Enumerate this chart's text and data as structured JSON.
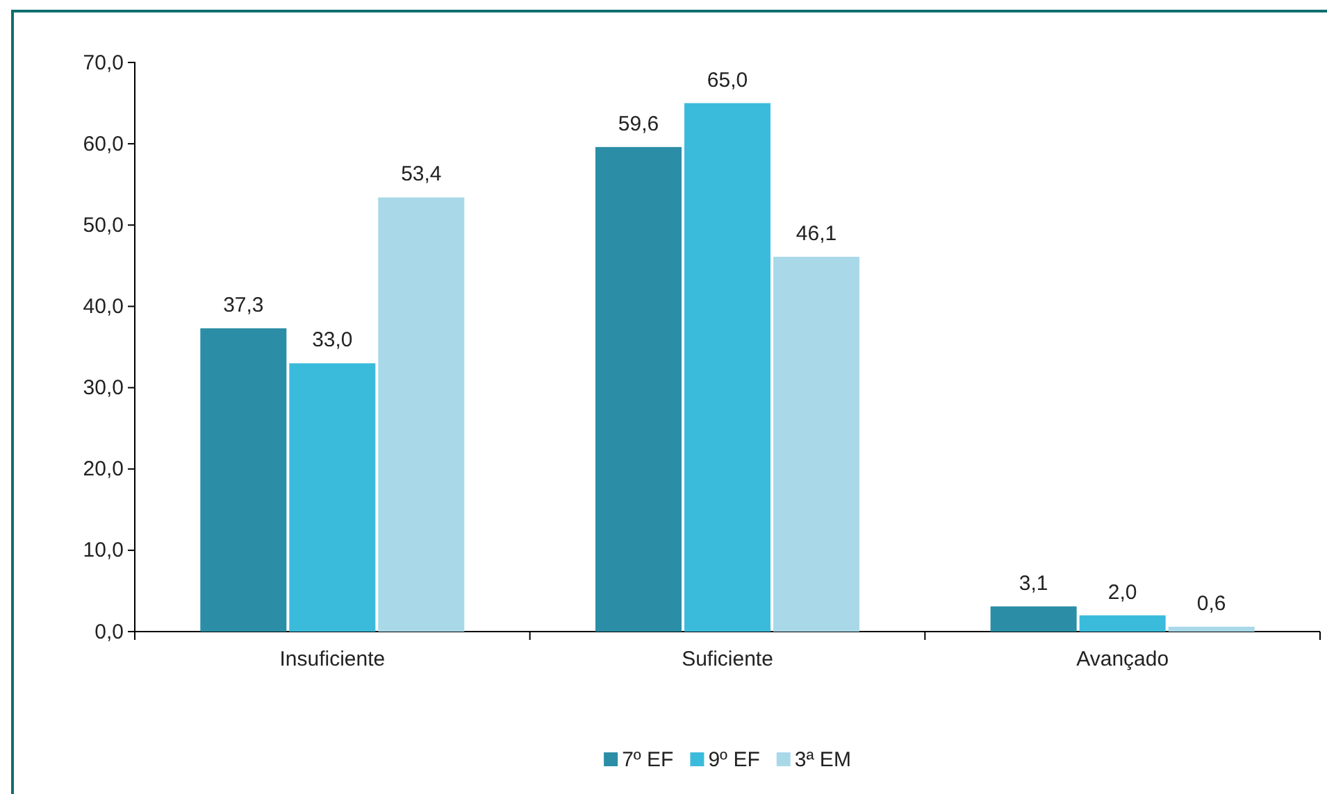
{
  "chart_data": {
    "type": "bar",
    "categories": [
      "Insuficiente",
      "Suficiente",
      "Avançado"
    ],
    "series": [
      {
        "name": "7º EF",
        "color": "#2b8ea6",
        "values": [
          37.3,
          59.6,
          3.1
        ],
        "value_labels": [
          "37,3",
          "59,6",
          "3,1"
        ]
      },
      {
        "name": "9º EF",
        "color": "#3bbbdc",
        "values": [
          33.0,
          65.0,
          2.0
        ],
        "value_labels": [
          "33,0",
          "65,0",
          "2,0"
        ]
      },
      {
        "name": "3ª EM",
        "color": "#a9d9e9",
        "values": [
          53.4,
          46.1,
          0.6
        ],
        "value_labels": [
          "53,4",
          "46,1",
          "0,6"
        ]
      }
    ],
    "ylim": [
      0,
      70
    ],
    "yticks": [
      {
        "value": 0,
        "label": "0,0"
      },
      {
        "value": 10,
        "label": "10,0"
      },
      {
        "value": 20,
        "label": "20,0"
      },
      {
        "value": 30,
        "label": "30,0"
      },
      {
        "value": 40,
        "label": "40,0"
      },
      {
        "value": 50,
        "label": "50,0"
      },
      {
        "value": 60,
        "label": "60,0"
      },
      {
        "value": 70,
        "label": "70,0"
      }
    ],
    "grid": false,
    "legend": "bottom"
  }
}
